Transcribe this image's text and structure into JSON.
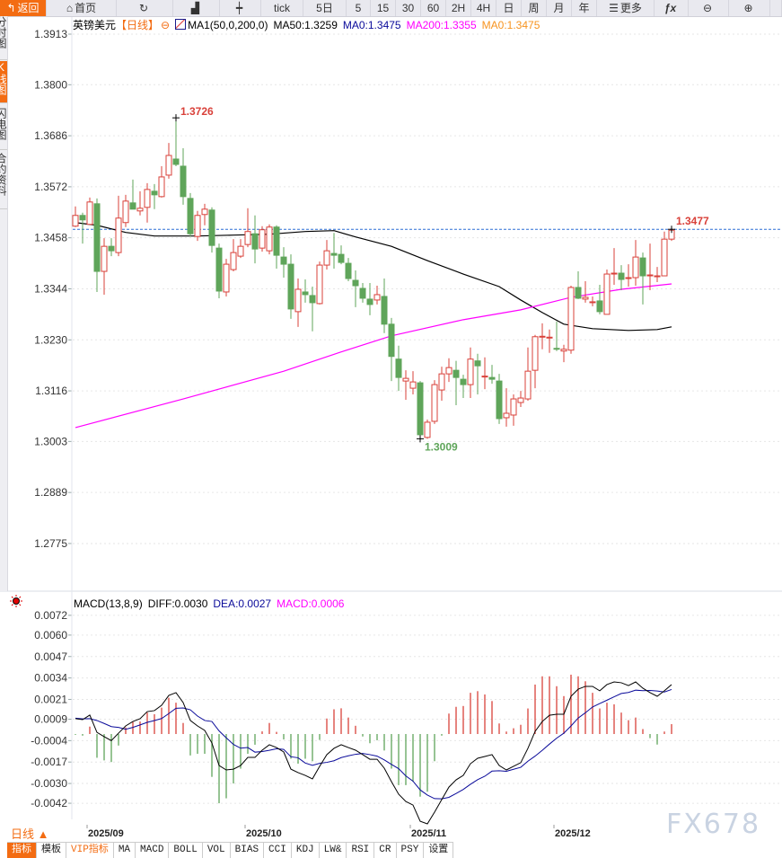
{
  "toolbar": {
    "items": [
      {
        "label": "返回",
        "icon": "back-arrow-icon"
      },
      {
        "label": "首页",
        "icon": "home-icon"
      },
      {
        "label": "",
        "icon": "refresh-icon"
      },
      {
        "label": "",
        "icon": "draw-line-icon"
      },
      {
        "label": "",
        "icon": "candlestick-icon"
      },
      {
        "label": "tick",
        "icon": ""
      },
      {
        "label": "5日",
        "icon": ""
      },
      {
        "label": "5",
        "icon": ""
      },
      {
        "label": "15",
        "icon": ""
      },
      {
        "label": "30",
        "icon": ""
      },
      {
        "label": "60",
        "icon": ""
      },
      {
        "label": "2H",
        "icon": ""
      },
      {
        "label": "4H",
        "icon": ""
      },
      {
        "label": "日",
        "icon": ""
      },
      {
        "label": "周",
        "icon": ""
      },
      {
        "label": "月",
        "icon": ""
      },
      {
        "label": "年",
        "icon": ""
      },
      {
        "label": "更多",
        "icon": "menu-icon"
      },
      {
        "label": "",
        "icon": "fx-icon"
      },
      {
        "label": "",
        "icon": "zoom-out-icon"
      },
      {
        "label": "",
        "icon": "zoom-in-icon"
      },
      {
        "label": "",
        "icon": ""
      }
    ]
  },
  "left_tabs": [
    {
      "label": "分时图",
      "active": false
    },
    {
      "label": "K线图",
      "active": true
    },
    {
      "label": "闪电图",
      "active": false
    },
    {
      "label": "合约资料",
      "active": false
    }
  ],
  "main_legend": {
    "symbol": "英镑美元",
    "period": "【日线】",
    "ma_setting": "MA1(50,0,200,0)",
    "ma50": "MA50:1.3259",
    "ma0_a": "MA0:1.3475",
    "ma200": "MA200:1.3355",
    "ma0_b": "MA0:1.3475"
  },
  "macd_legend": {
    "name": "MACD(13,8,9)",
    "diff": "DIFF:0.0030",
    "dea": "DEA:0.0027",
    "macd": "MACD:0.0006"
  },
  "colors": {
    "up": "#d9413a",
    "down": "#5fa55a",
    "ma50": "#000000",
    "ma200": "#ff00ff",
    "diff": "#000000",
    "dea": "#0a0a9a",
    "accent": "#f36c12",
    "last_price_line": "#2b6fd6"
  },
  "period_selector": "日线 ▲",
  "watermark": "FX678",
  "bottom_tabs": [
    "指标",
    "模板",
    "VIP指标",
    "MA",
    "MACD",
    "BOLL",
    "VOL",
    "BIAS",
    "CCI",
    "KDJ",
    "LW&",
    "RSI",
    "CR",
    "PSY",
    "设置"
  ],
  "chart_data": [
    {
      "type": "candlestick",
      "title": "英镑美元",
      "y_ticks": [
        "1.3913",
        "1.3800",
        "1.3686",
        "1.3572",
        "1.3458",
        "1.3344",
        "1.3230",
        "1.3116",
        "1.3003",
        "1.2889",
        "1.2775"
      ],
      "ylim": [
        1.2775,
        1.3913
      ],
      "x_ticks": [
        "2025/09",
        "2025/10",
        "2025/11",
        "2025/12"
      ],
      "x_tick_candle_index": [
        3,
        25,
        48,
        68
      ],
      "annotations": {
        "high": "1.3726",
        "low": "1.3009",
        "last": "1.3477"
      },
      "high_index": 15,
      "low_index": 49,
      "last_price": 1.3477,
      "ohlc": [
        [
          1.3484,
          1.3528,
          1.3482,
          1.3508
        ],
        [
          1.3508,
          1.3514,
          1.3445,
          1.3498
        ],
        [
          1.3488,
          1.3548,
          1.3488,
          1.3538
        ],
        [
          1.3534,
          1.3546,
          1.3337,
          1.3383
        ],
        [
          1.3383,
          1.3457,
          1.3331,
          1.3439
        ],
        [
          1.3439,
          1.3457,
          1.3417,
          1.3429
        ],
        [
          1.3425,
          1.3552,
          1.3417,
          1.3502
        ],
        [
          1.3492,
          1.3554,
          1.3482,
          1.354
        ],
        [
          1.3536,
          1.3588,
          1.3522,
          1.3522
        ],
        [
          1.3518,
          1.3562,
          1.3508,
          1.3524
        ],
        [
          1.3526,
          1.358,
          1.3492,
          1.3566
        ],
        [
          1.3562,
          1.3578,
          1.3522,
          1.3554
        ],
        [
          1.355,
          1.3618,
          1.3548,
          1.3594
        ],
        [
          1.3598,
          1.367,
          1.359,
          1.3642
        ],
        [
          1.3634,
          1.3726,
          1.3618,
          1.3622
        ],
        [
          1.3618,
          1.3658,
          1.3532,
          1.355
        ],
        [
          1.3546,
          1.3558,
          1.3461,
          1.3467
        ],
        [
          1.3461,
          1.3518,
          1.3451,
          1.3508
        ],
        [
          1.351,
          1.3534,
          1.3486,
          1.3522
        ],
        [
          1.352,
          1.3526,
          1.3425,
          1.3441
        ],
        [
          1.3435,
          1.3445,
          1.3323,
          1.3339
        ],
        [
          1.3337,
          1.3411,
          1.3327,
          1.3399
        ],
        [
          1.3387,
          1.3455,
          1.3383,
          1.3425
        ],
        [
          1.3417,
          1.3455,
          1.3413,
          1.3439
        ],
        [
          1.3443,
          1.3524,
          1.3437,
          1.3472
        ],
        [
          1.3467,
          1.3508,
          1.3401,
          1.3433
        ],
        [
          1.3435,
          1.3484,
          1.3427,
          1.3476
        ],
        [
          1.3429,
          1.3488,
          1.3421,
          1.3482
        ],
        [
          1.3482,
          1.3486,
          1.3389,
          1.3419
        ],
        [
          1.3415,
          1.3437,
          1.3369,
          1.3399
        ],
        [
          1.3399,
          1.3421,
          1.3277,
          1.3299
        ],
        [
          1.3293,
          1.3367,
          1.3259,
          1.3343
        ],
        [
          1.3337,
          1.3365,
          1.3313,
          1.3331
        ],
        [
          1.3329,
          1.3349,
          1.3249,
          1.3313
        ],
        [
          1.3311,
          1.3405,
          1.3309,
          1.3397
        ],
        [
          1.3397,
          1.3453,
          1.3387,
          1.3429
        ],
        [
          1.3423,
          1.3469,
          1.3389,
          1.3419
        ],
        [
          1.3421,
          1.3441,
          1.3399,
          1.3403
        ],
        [
          1.3401,
          1.3413,
          1.3361,
          1.3367
        ],
        [
          1.3363,
          1.3385,
          1.3303,
          1.3351
        ],
        [
          1.3345,
          1.3357,
          1.3313,
          1.3323
        ],
        [
          1.3321,
          1.3357,
          1.3285,
          1.3309
        ],
        [
          1.3319,
          1.3351,
          1.3309,
          1.3331
        ],
        [
          1.3327,
          1.3367,
          1.3245,
          1.3265
        ],
        [
          1.3265,
          1.3279,
          1.3138,
          1.3193
        ],
        [
          1.3187,
          1.3217,
          1.3116,
          1.3146
        ],
        [
          1.3138,
          1.3162,
          1.3096,
          1.3144
        ],
        [
          1.3122,
          1.316,
          1.3108,
          1.3136
        ],
        [
          1.3134,
          1.3138,
          1.3009,
          1.3018
        ],
        [
          1.3012,
          1.3052,
          1.3009,
          1.3046
        ],
        [
          1.3048,
          1.314,
          1.3042,
          1.313
        ],
        [
          1.3118,
          1.317,
          1.3094,
          1.3154
        ],
        [
          1.3154,
          1.3189,
          1.3136,
          1.3168
        ],
        [
          1.3162,
          1.3183,
          1.3084,
          1.3146
        ],
        [
          1.3142,
          1.3152,
          1.31,
          1.313
        ],
        [
          1.313,
          1.3213,
          1.31,
          1.3187
        ],
        [
          1.3183,
          1.3199,
          1.3108,
          1.3172
        ],
        [
          1.3148,
          1.3191,
          1.312,
          1.3149
        ],
        [
          1.3146,
          1.3174,
          1.3132,
          1.3142
        ],
        [
          1.3138,
          1.3154,
          1.3042,
          1.3054
        ],
        [
          1.3056,
          1.3122,
          1.3036,
          1.3066
        ],
        [
          1.3062,
          1.3108,
          1.3038,
          1.3098
        ],
        [
          1.309,
          1.3116,
          1.308,
          1.31
        ],
        [
          1.3098,
          1.3213,
          1.3094,
          1.316
        ],
        [
          1.3162,
          1.3241,
          1.3122,
          1.3237
        ],
        [
          1.3237,
          1.3267,
          1.3209,
          1.3238
        ],
        [
          1.3235,
          1.3253,
          1.3201,
          1.3236
        ],
        [
          1.3211,
          1.3271,
          1.3205,
          1.3209
        ],
        [
          1.3205,
          1.3219,
          1.318,
          1.3209
        ],
        [
          1.3207,
          1.3351,
          1.3199,
          1.3347
        ],
        [
          1.3347,
          1.3383,
          1.3321,
          1.3323
        ],
        [
          1.3321,
          1.3361,
          1.3313,
          1.3325
        ],
        [
          1.3313,
          1.3327,
          1.3305,
          1.3315
        ],
        [
          1.3317,
          1.3353,
          1.3287,
          1.3293
        ],
        [
          1.3287,
          1.3387,
          1.3287,
          1.3377
        ],
        [
          1.3377,
          1.3435,
          1.3353,
          1.3379
        ],
        [
          1.3379,
          1.3397,
          1.3341,
          1.3365
        ],
        [
          1.3367,
          1.3399,
          1.3349,
          1.3369
        ],
        [
          1.3369,
          1.3453,
          1.3351,
          1.3415
        ],
        [
          1.3413,
          1.3425,
          1.3309,
          1.3373
        ],
        [
          1.3373,
          1.3445,
          1.3341,
          1.3375
        ],
        [
          1.3371,
          1.3393,
          1.3359,
          1.3373
        ],
        [
          1.3373,
          1.3472,
          1.3373,
          1.3455
        ],
        [
          1.3455,
          1.3477,
          1.3451,
          1.3475
        ]
      ],
      "series": [
        {
          "name": "MA50",
          "points": [
            [
              1,
              1.3492
            ],
            [
              4,
              1.3486
            ],
            [
              8,
              1.347
            ],
            [
              12,
              1.3462
            ],
            [
              18,
              1.3462
            ],
            [
              23,
              1.3464
            ],
            [
              28,
              1.3466
            ],
            [
              33,
              1.3472
            ],
            [
              37,
              1.3474
            ],
            [
              40,
              1.346
            ],
            [
              45,
              1.3439
            ],
            [
              50,
              1.3407
            ],
            [
              55,
              1.3377
            ],
            [
              60,
              1.3349
            ],
            [
              63,
              1.3319
            ],
            [
              66,
              1.3291
            ],
            [
              69,
              1.3265
            ],
            [
              73,
              1.3255
            ],
            [
              78,
              1.3251
            ],
            [
              82,
              1.3253
            ],
            [
              84,
              1.3259
            ]
          ]
        },
        {
          "name": "MA200",
          "points": [
            [
              1,
              1.3034
            ],
            [
              16,
              1.3098
            ],
            [
              30,
              1.316
            ],
            [
              38,
              1.3203
            ],
            [
              45,
              1.3239
            ],
            [
              55,
              1.3275
            ],
            [
              63,
              1.3297
            ],
            [
              70,
              1.3325
            ],
            [
              77,
              1.3343
            ],
            [
              84,
              1.3355
            ]
          ]
        }
      ]
    },
    {
      "type": "bar+line",
      "title": "MACD(13,8,9)",
      "y_ticks": [
        "0.0072",
        "0.0060",
        "0.0047",
        "0.0034",
        "0.0021",
        "0.0009",
        "-0.0004",
        "-0.0017",
        "-0.0030",
        "-0.0042"
      ],
      "ylim": [
        -0.0042,
        0.0072
      ],
      "macd": [
        -5e-05,
        -0.0001,
        0.00045,
        -0.00144,
        -0.0016,
        -0.0017,
        -0.0007,
        0.0004,
        0.00073,
        0.00076,
        0.0013,
        0.0012,
        0.0016,
        0.0022,
        0.0019,
        0.00067,
        -0.0013,
        -0.0012,
        -0.0012,
        -0.0026,
        -0.0042,
        -0.0039,
        -0.003,
        -0.0021,
        -0.0012,
        -0.00065,
        0.00016,
        0.00067,
        0.00013,
        -0.00033,
        -0.0015,
        -0.0018,
        -0.0015,
        -0.00165,
        -0.00036,
        0.00094,
        0.0015,
        0.00156,
        0.001,
        0.0005,
        -0.00015,
        -0.00056,
        -0.00038,
        -0.001,
        -0.0021,
        -0.0031,
        -0.0031,
        -0.0029,
        -0.0038,
        -0.0035,
        -0.00165,
        -0.0001,
        0.00124,
        0.00165,
        0.0017,
        0.0025,
        0.0026,
        0.0024,
        0.002,
        0.00064,
        0.00015,
        0.00035,
        0.00056,
        0.00155,
        0.003,
        0.0035,
        0.0035,
        0.0029,
        0.0023,
        0.0036,
        0.0035,
        0.0032,
        0.0025,
        0.00155,
        0.0019,
        0.0018,
        0.0013,
        0.00084,
        0.001,
        0.0003,
        -0.00025,
        -0.00064,
        0.00015,
        0.0006
      ],
      "diff": [
        0.00093,
        0.00087,
        0.00115,
        0.0001,
        -0.00016,
        -0.0004,
        5e-05,
        0.00049,
        0.00076,
        0.00093,
        0.00136,
        0.00142,
        0.00174,
        0.00234,
        0.00251,
        0.00191,
        0.00082,
        0.00049,
        0.00022,
        -0.00054,
        -0.00191,
        -0.00218,
        -0.00213,
        -0.00191,
        -0.00142,
        -0.00142,
        -0.00098,
        -0.00065,
        -0.00082,
        -0.00109,
        -0.00213,
        -0.00234,
        -0.00251,
        -0.00272,
        -0.00196,
        -0.00125,
        -0.00087,
        -0.00065,
        -0.00082,
        -0.00098,
        -0.00125,
        -0.00153,
        -0.00153,
        -0.00207,
        -0.00289,
        -0.00365,
        -0.00409,
        -0.00431,
        -0.00529,
        -0.00545,
        -0.00474,
        -0.00398,
        -0.00322,
        -0.00278,
        -0.00251,
        -0.0018,
        -0.00147,
        -0.00136,
        -0.00125,
        -0.00191,
        -0.00218,
        -0.00196,
        -0.00174,
        -0.00087,
        0.00016,
        0.00076,
        0.00114,
        0.0012,
        0.0012,
        0.00229,
        0.00272,
        0.00289,
        0.00289,
        0.00262,
        0.003,
        0.00316,
        0.00311,
        0.00294,
        0.00316,
        0.00278,
        0.00251,
        0.00229,
        0.00262,
        0.003
      ],
      "dea": [
        0.00096,
        0.00092,
        0.00093,
        0.00082,
        0.00064,
        0.00045,
        0.0004,
        0.00029,
        0.0004,
        0.00055,
        0.00071,
        0.00082,
        0.00094,
        0.00124,
        0.00156,
        0.00158,
        0.00147,
        0.00109,
        0.00082,
        0.00076,
        0.00019,
        -0.00023,
        -0.00063,
        -0.00086,
        -0.00082,
        -0.0011,
        -0.00106,
        -0.00099,
        -0.00089,
        -0.00093,
        -0.00138,
        -0.00144,
        -0.00176,
        -0.0019,
        -0.00178,
        -0.00172,
        -0.00162,
        -0.00143,
        -0.00132,
        -0.00123,
        -0.00118,
        -0.00125,
        -0.00134,
        -0.00157,
        -0.00184,
        -0.0021,
        -0.00254,
        -0.00286,
        -0.00339,
        -0.0037,
        -0.00392,
        -0.00393,
        -0.00384,
        -0.00361,
        -0.00336,
        -0.00305,
        -0.00277,
        -0.00256,
        -0.00225,
        -0.00223,
        -0.00226,
        -0.00214,
        -0.00202,
        -0.00165,
        -0.00134,
        -0.00099,
        -0.00061,
        -0.00025,
        5e-05,
        0.00049,
        0.00097,
        0.00129,
        0.00164,
        0.00185,
        0.00205,
        0.00226,
        0.00246,
        0.00252,
        0.00266,
        0.00263,
        0.00264,
        0.00261,
        0.00255,
        0.0027
      ]
    }
  ]
}
